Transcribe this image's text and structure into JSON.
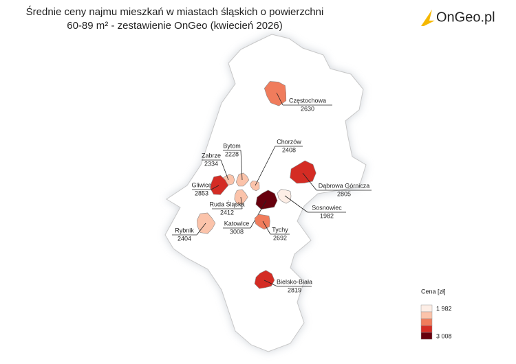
{
  "header": {
    "title_line1": "Średnie ceny najmu mieszkań w miastach śląskich o powierzchni",
    "title_line2": "60-89 m² - zestawienie OnGeo (kwiecień 2026)"
  },
  "logo": "OnGeo.pl",
  "cities": [
    {
      "name": "Częstochowa",
      "price": 2630,
      "color": "#f07c5c"
    },
    {
      "name": "Bytom",
      "price": 2228,
      "color": "#fbc3aa"
    },
    {
      "name": "Zabrze",
      "price": 2334,
      "color": "#fbc3aa"
    },
    {
      "name": "Chorzów",
      "price": 2408,
      "color": "#fbc3aa"
    },
    {
      "name": "Gliwice",
      "price": 2853,
      "color": "#d42c24"
    },
    {
      "name": "Dąbrowa Górnicza",
      "price": 2805,
      "color": "#d42c24"
    },
    {
      "name": "Sosnowiec",
      "price": 1982,
      "color": "#fdeee6"
    },
    {
      "name": "Ruda Śląska",
      "price": 2412,
      "color": "#fbc3aa"
    },
    {
      "name": "Katowice",
      "price": 3008,
      "color": "#67000d"
    },
    {
      "name": "Tychy",
      "price": 2692,
      "color": "#f07c5c"
    },
    {
      "name": "Rybnik",
      "price": 2404,
      "color": "#fbc3aa"
    },
    {
      "name": "Bielsko-Biała",
      "price": 2819,
      "color": "#d42c24"
    }
  ],
  "legend": {
    "title": "Cena [zł]",
    "colors": [
      "#fdeee6",
      "#fbc3aa",
      "#f07c5c",
      "#d42c24",
      "#67000d"
    ],
    "min": {
      "value": 1982,
      "label": "1 982"
    },
    "max": {
      "value": 3008,
      "label": "3 008"
    }
  }
}
